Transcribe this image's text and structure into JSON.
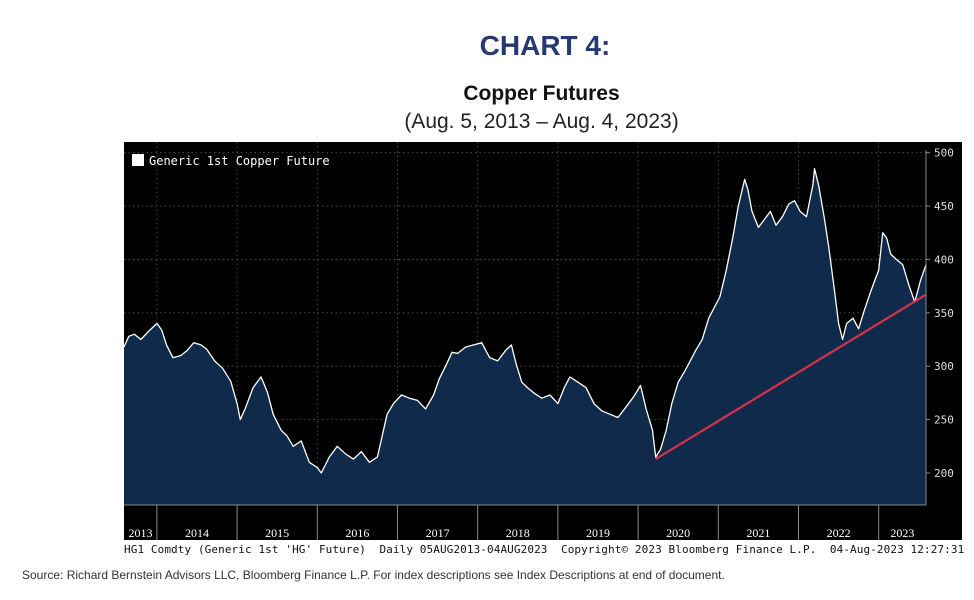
{
  "heading": "CHART 4:",
  "subtitle": "(Aug. 5, 2013 – Aug. 4, 2023)",
  "footer": "HG1 Comdty (Generic 1st 'HG' Future)  Daily 05AUG2013-04AUG2023  Copyright© 2023 Bloomberg Finance L.P.  04-Aug-2023 12:27:31",
  "source": "Source: Richard Bernstein Advisors LLC, Bloomberg Finance L.P. For index descriptions see Index Descriptions at end of document.",
  "colors": {
    "heading": "#243a73",
    "plot_background": "#000000",
    "area_fill": "#0f2a4a",
    "series_line": "#ffffff",
    "trendline": "#d6304a"
  },
  "chart_data": {
    "type": "area",
    "title": "Copper Futures",
    "legend": [
      "Generic 1st Copper Future"
    ],
    "legend_position": "top-left",
    "grid": true,
    "x_unit": "year",
    "x_labels": [
      "2013",
      "2014",
      "2015",
      "2016",
      "2017",
      "2018",
      "2019",
      "2020",
      "2021",
      "2022",
      "2023"
    ],
    "xlim": [
      2013.59,
      2023.59
    ],
    "ylim": [
      170,
      510
    ],
    "y_ticks": [
      200,
      250,
      300,
      350,
      400,
      450,
      500
    ],
    "y_axis_position": "right",
    "series": [
      {
        "name": "Generic 1st Copper Future",
        "x": [
          2013.59,
          2013.65,
          2013.72,
          2013.8,
          2013.9,
          2014.0,
          2014.06,
          2014.12,
          2014.2,
          2014.3,
          2014.38,
          2014.46,
          2014.55,
          2014.62,
          2014.72,
          2014.82,
          2014.92,
          2015.0,
          2015.04,
          2015.1,
          2015.2,
          2015.3,
          2015.38,
          2015.45,
          2015.55,
          2015.62,
          2015.7,
          2015.8,
          2015.9,
          2016.0,
          2016.05,
          2016.15,
          2016.25,
          2016.35,
          2016.45,
          2016.55,
          2016.65,
          2016.75,
          2016.82,
          2016.87,
          2016.95,
          2017.05,
          2017.15,
          2017.25,
          2017.35,
          2017.45,
          2017.52,
          2017.6,
          2017.68,
          2017.75,
          2017.85,
          2017.95,
          2018.05,
          2018.15,
          2018.25,
          2018.35,
          2018.42,
          2018.48,
          2018.55,
          2018.62,
          2018.7,
          2018.8,
          2018.9,
          2019.0,
          2019.08,
          2019.15,
          2019.25,
          2019.35,
          2019.45,
          2019.55,
          2019.65,
          2019.75,
          2019.85,
          2019.95,
          2020.03,
          2020.1,
          2020.18,
          2020.22,
          2020.28,
          2020.35,
          2020.42,
          2020.5,
          2020.58,
          2020.65,
          2020.72,
          2020.8,
          2020.88,
          2020.95,
          2021.02,
          2021.1,
          2021.18,
          2021.25,
          2021.33,
          2021.37,
          2021.42,
          2021.5,
          2021.58,
          2021.65,
          2021.72,
          2021.8,
          2021.88,
          2021.95,
          2022.02,
          2022.1,
          2022.18,
          2022.2,
          2022.25,
          2022.32,
          2022.38,
          2022.45,
          2022.5,
          2022.55,
          2022.6,
          2022.68,
          2022.75,
          2022.82,
          2022.9,
          2023.0,
          2023.05,
          2023.1,
          2023.15,
          2023.22,
          2023.3,
          2023.38,
          2023.45,
          2023.52,
          2023.59
        ],
        "y": [
          318,
          328,
          330,
          325,
          333,
          340,
          334,
          320,
          308,
          310,
          315,
          322,
          320,
          316,
          305,
          298,
          286,
          265,
          250,
          260,
          280,
          290,
          275,
          255,
          240,
          235,
          225,
          230,
          210,
          205,
          200,
          215,
          225,
          218,
          213,
          220,
          210,
          215,
          238,
          255,
          265,
          273,
          270,
          268,
          260,
          273,
          288,
          300,
          313,
          312,
          318,
          320,
          322,
          308,
          305,
          315,
          320,
          302,
          285,
          280,
          275,
          270,
          273,
          265,
          280,
          290,
          285,
          280,
          265,
          258,
          255,
          252,
          262,
          272,
          282,
          260,
          240,
          215,
          222,
          240,
          265,
          285,
          295,
          305,
          315,
          325,
          345,
          355,
          365,
          390,
          420,
          450,
          475,
          465,
          445,
          430,
          438,
          445,
          432,
          440,
          452,
          455,
          445,
          440,
          470,
          485,
          470,
          440,
          410,
          370,
          340,
          325,
          340,
          345,
          335,
          352,
          370,
          390,
          425,
          420,
          405,
          400,
          395,
          375,
          360,
          380,
          395
        ]
      }
    ],
    "trendline": {
      "x": [
        2020.22,
        2023.59
      ],
      "y": [
        213,
        367
      ]
    }
  }
}
